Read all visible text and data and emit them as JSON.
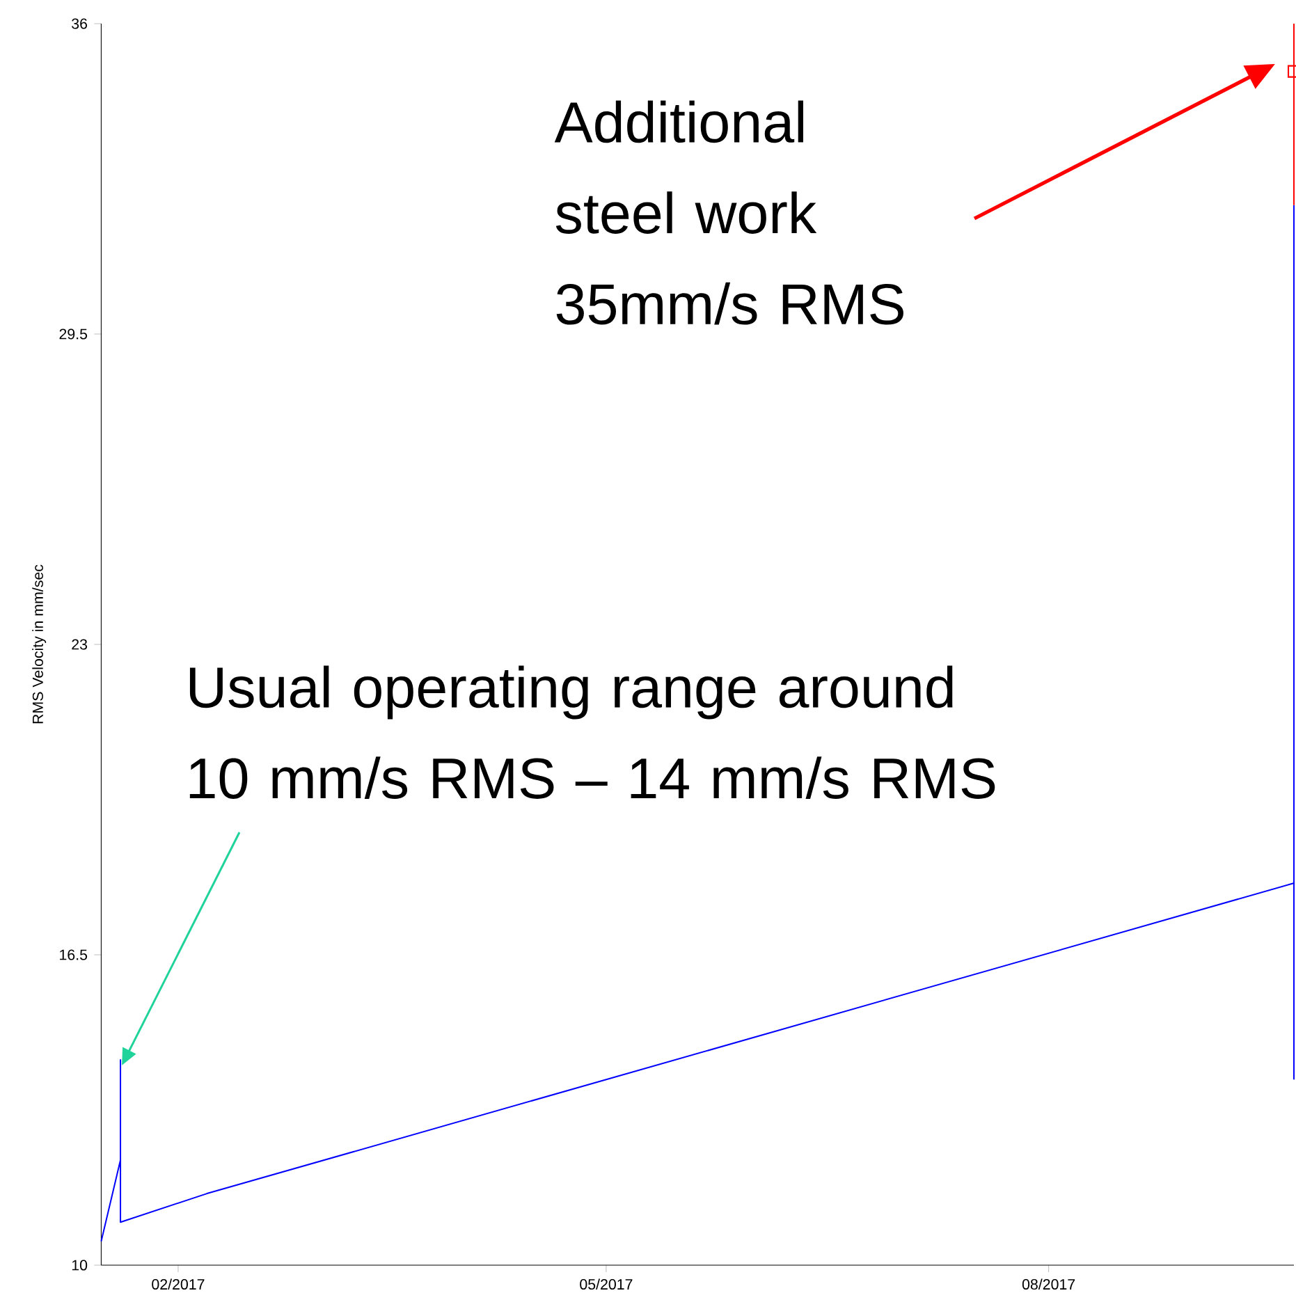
{
  "chart_data": {
    "type": "line",
    "ylabel": "RMS Velocity in mm/sec",
    "xlim": [
      "2017-01-16",
      "2017-09-21"
    ],
    "ylim": [
      10,
      36
    ],
    "xticks": [
      {
        "value": "2017-02-01",
        "label": "02/2017"
      },
      {
        "value": "2017-05-01",
        "label": "05/2017"
      },
      {
        "value": "2017-08-01",
        "label": "08/2017"
      }
    ],
    "yticks": [
      10,
      16.5,
      23,
      29.5,
      36
    ],
    "series": [
      {
        "color": "#0000ff",
        "x": [
          "2017-01-16",
          "2017-01-20",
          "2017-01-20",
          "2017-01-20",
          "2017-02-07",
          "2017-09-21",
          "2017-09-21",
          "2017-09-21"
        ],
        "values": [
          10.5,
          12.2,
          14.3,
          10.9,
          11.5,
          18.0,
          13.9,
          32.2
        ]
      },
      {
        "color": "#ff0000",
        "x": [
          "2017-09-21",
          "2017-09-21"
        ],
        "values": [
          36,
          32.2
        ]
      },
      {
        "type": "scatter",
        "marker": "square",
        "color": "#ff0000",
        "x": [
          "2017-09-21"
        ],
        "values": [
          35
        ]
      }
    ],
    "annotations": [
      "Additional steel work 35mm/s RMS",
      {
        "text": "Usual operating range around 10 mm/s RMS – 14 mm/s RMS",
        "x": "2017-01-20",
        "y": 14.3
      }
    ]
  }
}
